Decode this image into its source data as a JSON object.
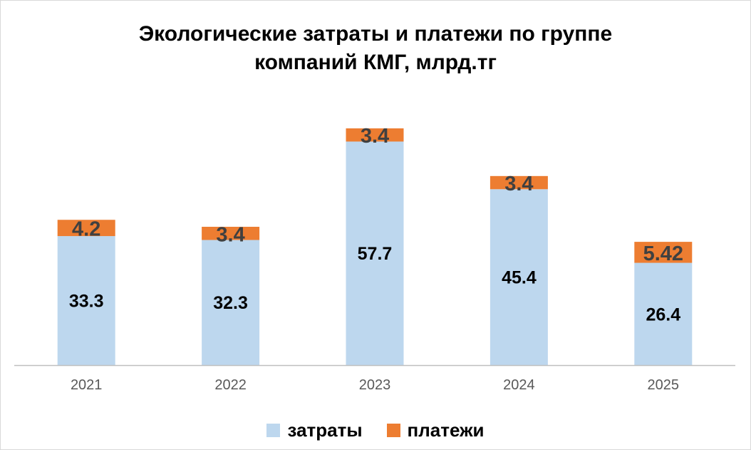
{
  "chart_data": {
    "type": "bar",
    "stacked": true,
    "title_line1": "Экологические затраты и платежи по группе",
    "title_line2": "компаний КМГ, млрд.тг",
    "categories": [
      "2021",
      "2022",
      "2023",
      "2024",
      "2025"
    ],
    "series": [
      {
        "name": "затраты",
        "color": "#bdd7ee",
        "values": [
          33.3,
          32.3,
          57.7,
          45.4,
          26.4
        ],
        "labels": [
          "33.3",
          "32.3",
          "57.7",
          "45.4",
          "26.4"
        ]
      },
      {
        "name": "платежи",
        "color": "#ed7d31",
        "values": [
          4.2,
          3.4,
          3.4,
          3.4,
          5.42
        ],
        "labels": [
          "4.2",
          "3.4",
          "3.4",
          "3.4",
          "5.42"
        ]
      }
    ],
    "ylim": [
      0,
      61.1
    ],
    "grid": false,
    "legend_position": "bottom"
  }
}
